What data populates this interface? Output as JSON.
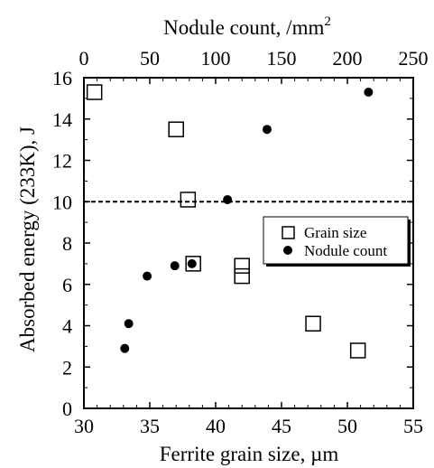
{
  "chart_data": {
    "type": "scatter",
    "title": "",
    "xlabel": "Ferrite grain size, µm",
    "x2label_main": "Nodule count, /mm",
    "x2label_sup": "2",
    "ylabel": "Absorbed energy (233K), J",
    "xlim": [
      30,
      55
    ],
    "x2lim": [
      0,
      250
    ],
    "ylim": [
      0,
      16
    ],
    "x_ticks": [
      "30",
      "35",
      "40",
      "45",
      "50",
      "55"
    ],
    "x2_ticks": [
      "0",
      "50",
      "100",
      "150",
      "200",
      "250"
    ],
    "y_ticks": [
      "0",
      "2",
      "4",
      "6",
      "8",
      "10",
      "12",
      "14",
      "16"
    ],
    "reference_line": {
      "y": 10,
      "style": "dashed"
    },
    "legend_position": "right",
    "series": [
      {
        "name": "Grain size",
        "marker": "open-square",
        "axis": "bottom",
        "points": [
          {
            "x": 30.8,
            "y": 15.3
          },
          {
            "x": 37.0,
            "y": 13.5
          },
          {
            "x": 37.9,
            "y": 10.1
          },
          {
            "x": 38.3,
            "y": 7.0
          },
          {
            "x": 42.0,
            "y": 6.9
          },
          {
            "x": 42.0,
            "y": 6.4
          },
          {
            "x": 47.4,
            "y": 4.1
          },
          {
            "x": 50.8,
            "y": 2.8
          }
        ]
      },
      {
        "name": "Nodule count",
        "marker": "filled-circle",
        "axis": "top",
        "points": [
          {
            "x": 31,
            "y": 2.9
          },
          {
            "x": 34,
            "y": 4.1
          },
          {
            "x": 48,
            "y": 6.4
          },
          {
            "x": 69,
            "y": 6.9
          },
          {
            "x": 82,
            "y": 7.0
          },
          {
            "x": 109,
            "y": 10.1
          },
          {
            "x": 139,
            "y": 13.5
          },
          {
            "x": 216,
            "y": 15.3
          }
        ]
      }
    ]
  }
}
